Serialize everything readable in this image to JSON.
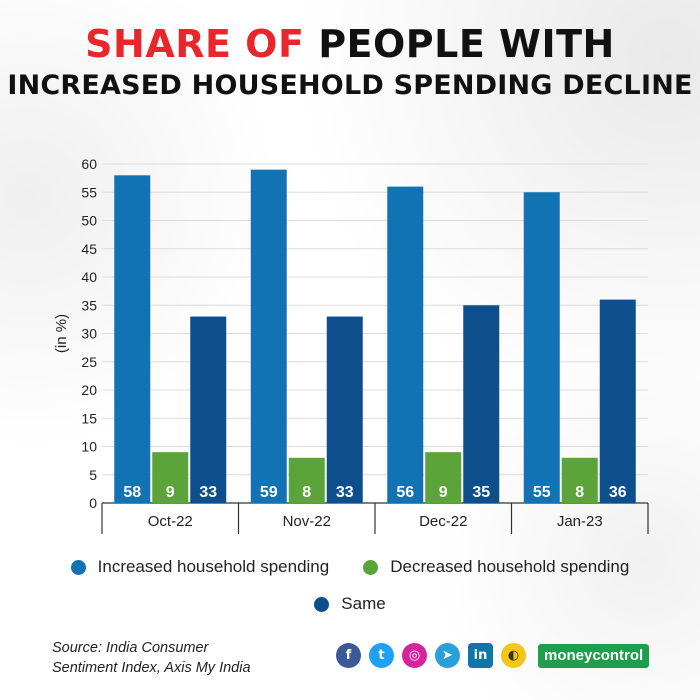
{
  "title": {
    "line1_red": "SHARE OF",
    "line1_black": "PEOPLE WITH",
    "line2": "INCREASED HOUSEHOLD SPENDING DECLINE"
  },
  "colors": {
    "increased": "#1273b4",
    "decreased": "#5aa43a",
    "same": "#0d4f8c",
    "title_red": "#e8262b"
  },
  "chart_data": {
    "type": "bar",
    "ylabel": "(in %)",
    "xlabel": "",
    "ylim": [
      0,
      60
    ],
    "yticks": [
      0,
      5,
      10,
      15,
      20,
      25,
      30,
      35,
      40,
      45,
      50,
      55,
      60
    ],
    "grid": true,
    "categories": [
      "Oct-22",
      "Nov-22",
      "Dec-22",
      "Jan-23"
    ],
    "series": [
      {
        "name": "Increased household spending",
        "color": "#1273b4",
        "values": [
          58,
          59,
          56,
          55
        ]
      },
      {
        "name": "Decreased household spending",
        "color": "#5aa43a",
        "values": [
          9,
          8,
          9,
          8
        ]
      },
      {
        "name": "Same",
        "color": "#0d4f8c",
        "values": [
          33,
          33,
          35,
          36
        ]
      }
    ],
    "legend_placement": "bottom"
  },
  "legend": {
    "increased": "Increased household spending",
    "decreased": "Decreased household spending",
    "same": "Same"
  },
  "source": {
    "line1": "Source: India Consumer",
    "line2": "Sentiment Index, Axis My India"
  },
  "social": {
    "facebook": "f",
    "twitter": "t",
    "instagram": "◎",
    "telegram": "➤",
    "linkedin": "in",
    "koo": "◐"
  },
  "brand": "moneycontrol"
}
